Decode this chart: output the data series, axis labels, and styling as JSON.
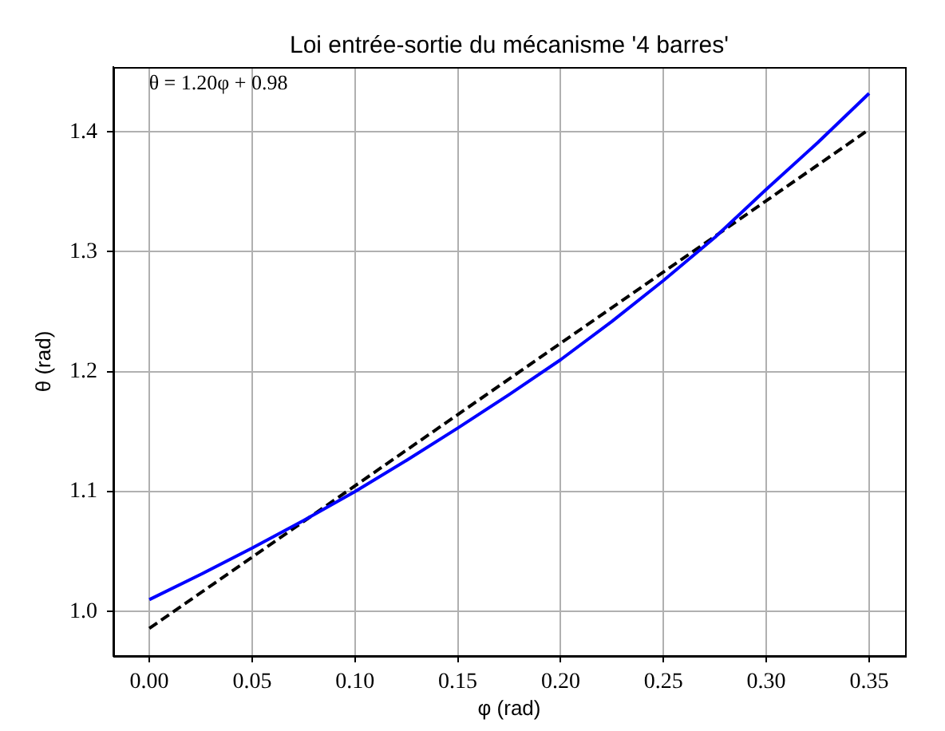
{
  "chart_data": {
    "type": "line",
    "title": "Loi entrée-sortie du mécanisme '4 barres'",
    "xlabel": "φ (rad)",
    "ylabel": "θ (rad)",
    "annotations": [
      "θ = 1.20φ + 0.98"
    ],
    "x": [
      0,
      0.025,
      0.05,
      0.075,
      0.1,
      0.125,
      0.15,
      0.175,
      0.2,
      0.225,
      0.25,
      0.275,
      0.3,
      0.325,
      0.35
    ],
    "series": [
      {
        "color": "#0000ff",
        "values": [
          1.01,
          1.031,
          1.053,
          1.076,
          1.1,
          1.126,
          1.153,
          1.181,
          1.21,
          1.242,
          1.276,
          1.312,
          1.352,
          1.391,
          1.432
        ]
      },
      {
        "color": "#000000",
        "x": [
          0,
          0.35
        ],
        "values": [
          0.986,
          1.402
        ],
        "line_style": "dashed"
      }
    ],
    "xlim": [
      -0.0175,
      0.3675
    ],
    "xticks": [
      {
        "value": 0,
        "label": "0.00"
      },
      0.05,
      {
        "value": 0.1,
        "label": "0.10"
      },
      0.15,
      {
        "value": 0.2,
        "label": "0.20"
      },
      0.25,
      {
        "value": 0.3,
        "label": "0.30"
      },
      0.35
    ],
    "ylim": [
      0.963,
      1.454
    ],
    "yticks": [
      {
        "value": 1,
        "label": "1.0"
      },
      1.1,
      1.2,
      1.3,
      1.4
    ],
    "grid": true,
    "marker": "none",
    "line_style": "solid"
  }
}
